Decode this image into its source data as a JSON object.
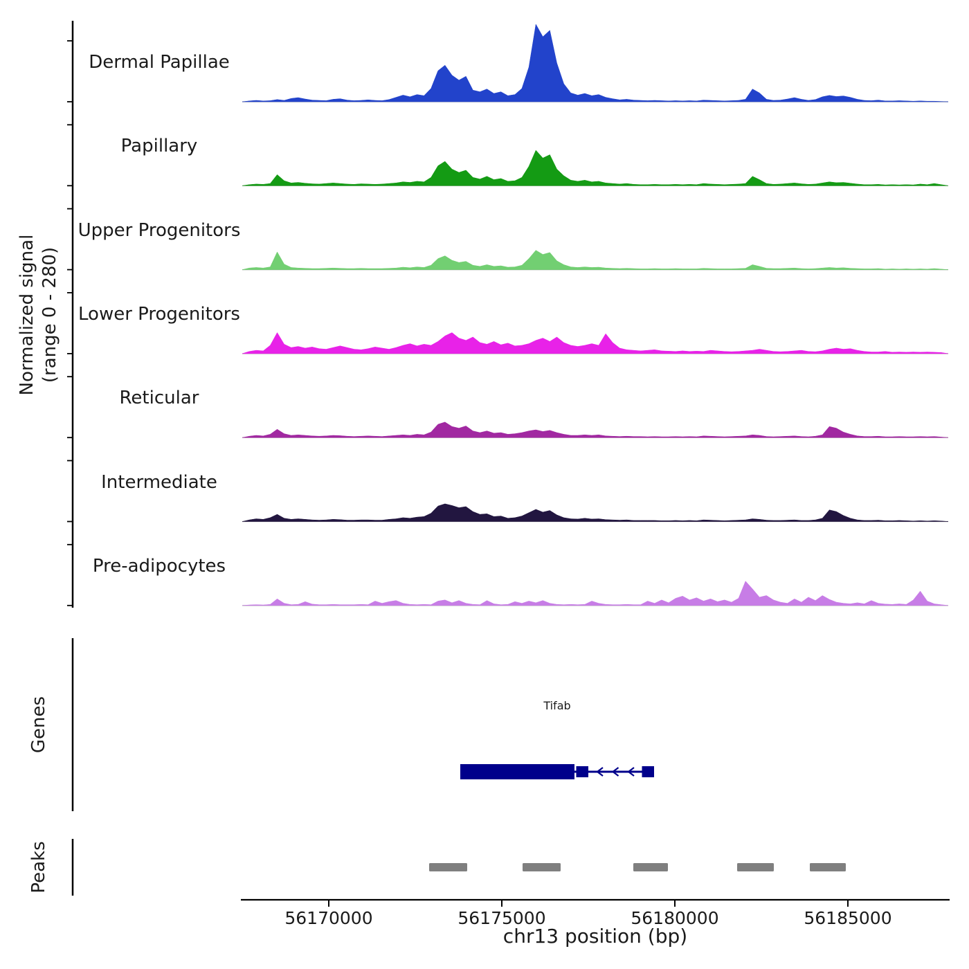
{
  "figure": {
    "ylabel_line1": "Normalized signal",
    "ylabel_line2": "(range 0 - 280)",
    "genes_label": "Genes",
    "peaks_label": "Peaks"
  },
  "chart_data": {
    "type": "area",
    "title": "",
    "xlabel": "chr13 position (bp)",
    "ylabel": "Normalized signal (range 0 - 280)",
    "x_range_bp": [
      56167500,
      56187900
    ],
    "y_range": [
      0,
      280
    ],
    "ticks_bp": [
      56170000,
      56175000,
      56180000,
      56185000
    ],
    "tick_labels": [
      "56170000",
      "56175000",
      "56180000",
      "56185000"
    ],
    "baseline_color": "#999999",
    "axis_color": "#000000",
    "tracks": [
      {
        "label": "Dermal Papillae",
        "color": "#2243cb",
        "values": [
          0,
          3,
          5,
          3,
          4,
          8,
          5,
          12,
          15,
          10,
          6,
          5,
          4,
          9,
          11,
          6,
          4,
          5,
          7,
          5,
          4,
          8,
          16,
          24,
          18,
          26,
          22,
          48,
          112,
          132,
          96,
          78,
          92,
          42,
          36,
          46,
          30,
          36,
          22,
          26,
          48,
          125,
          280,
          235,
          258,
          140,
          65,
          32,
          24,
          30,
          22,
          26,
          16,
          11,
          7,
          9,
          6,
          5,
          4,
          5,
          4,
          3,
          4,
          3,
          4,
          3,
          6,
          5,
          4,
          3,
          4,
          5,
          9,
          46,
          32,
          9,
          5,
          6,
          10,
          15,
          9,
          5,
          8,
          18,
          23,
          19,
          21,
          16,
          9,
          5,
          4,
          6,
          3,
          3,
          4,
          3,
          2,
          3,
          2,
          2,
          1,
          0
        ]
      },
      {
        "label": "Papillary",
        "color": "#149b14",
        "values": [
          0,
          4,
          6,
          5,
          8,
          40,
          18,
          10,
          12,
          9,
          7,
          6,
          8,
          10,
          8,
          6,
          5,
          7,
          6,
          5,
          6,
          8,
          10,
          14,
          12,
          16,
          14,
          30,
          72,
          88,
          60,
          48,
          56,
          30,
          24,
          34,
          22,
          26,
          16,
          18,
          30,
          70,
          128,
          100,
          112,
          60,
          36,
          20,
          16,
          20,
          14,
          16,
          10,
          8,
          6,
          8,
          5,
          4,
          4,
          5,
          4,
          4,
          5,
          4,
          5,
          4,
          8,
          6,
          5,
          4,
          5,
          6,
          8,
          34,
          22,
          8,
          5,
          6,
          8,
          10,
          7,
          5,
          6,
          10,
          14,
          11,
          12,
          9,
          6,
          4,
          4,
          5,
          3,
          4,
          3,
          4,
          3,
          6,
          4,
          8,
          4,
          0
        ]
      },
      {
        "label": "Upper Progenitors",
        "color": "#72cf72",
        "values": [
          0,
          6,
          8,
          6,
          10,
          64,
          20,
          8,
          6,
          5,
          4,
          4,
          5,
          6,
          5,
          4,
          4,
          5,
          4,
          4,
          4,
          5,
          6,
          9,
          7,
          10,
          8,
          16,
          40,
          50,
          34,
          26,
          30,
          16,
          12,
          18,
          12,
          14,
          9,
          10,
          16,
          40,
          70,
          55,
          62,
          32,
          18,
          10,
          8,
          10,
          8,
          9,
          6,
          5,
          4,
          5,
          4,
          3,
          3,
          4,
          3,
          3,
          4,
          3,
          3,
          3,
          5,
          4,
          3,
          3,
          3,
          4,
          5,
          18,
          12,
          5,
          4,
          4,
          5,
          6,
          4,
          3,
          4,
          6,
          8,
          6,
          7,
          5,
          4,
          3,
          3,
          4,
          2,
          3,
          2,
          3,
          2,
          3,
          2,
          4,
          2,
          0
        ]
      },
      {
        "label": "Lower Progenitors",
        "color": "#e822e8",
        "values": [
          0,
          8,
          12,
          10,
          30,
          76,
          34,
          22,
          26,
          20,
          24,
          18,
          16,
          22,
          28,
          22,
          16,
          14,
          18,
          24,
          20,
          16,
          22,
          30,
          36,
          28,
          34,
          30,
          44,
          64,
          76,
          56,
          48,
          60,
          40,
          34,
          44,
          32,
          38,
          28,
          30,
          36,
          48,
          56,
          44,
          60,
          40,
          30,
          26,
          30,
          36,
          30,
          72,
          40,
          20,
          14,
          12,
          10,
          12,
          14,
          10,
          9,
          8,
          10,
          8,
          9,
          8,
          12,
          10,
          8,
          7,
          8,
          10,
          12,
          16,
          12,
          8,
          7,
          8,
          10,
          12,
          8,
          7,
          10,
          16,
          20,
          16,
          18,
          12,
          8,
          6,
          6,
          8,
          5,
          6,
          5,
          6,
          5,
          6,
          5,
          4,
          0
        ]
      },
      {
        "label": "Reticular",
        "color": "#a128a1",
        "values": [
          0,
          5,
          8,
          6,
          12,
          30,
          14,
          8,
          10,
          8,
          6,
          5,
          6,
          8,
          7,
          5,
          4,
          5,
          6,
          5,
          4,
          6,
          8,
          10,
          8,
          12,
          10,
          20,
          48,
          56,
          40,
          34,
          42,
          24,
          18,
          24,
          16,
          18,
          12,
          14,
          18,
          24,
          28,
          22,
          26,
          18,
          12,
          8,
          8,
          10,
          8,
          10,
          6,
          5,
          4,
          5,
          4,
          4,
          3,
          4,
          3,
          3,
          4,
          3,
          4,
          3,
          6,
          5,
          4,
          3,
          4,
          5,
          6,
          10,
          8,
          4,
          3,
          4,
          5,
          6,
          4,
          3,
          5,
          10,
          40,
          34,
          20,
          12,
          6,
          4,
          4,
          5,
          3,
          3,
          4,
          3,
          3,
          4,
          3,
          4,
          2,
          0
        ]
      },
      {
        "label": "Intermediate",
        "color": "#221640",
        "values": [
          0,
          6,
          10,
          8,
          14,
          26,
          12,
          8,
          10,
          8,
          6,
          5,
          6,
          8,
          7,
          5,
          5,
          6,
          6,
          5,
          5,
          8,
          10,
          14,
          12,
          16,
          18,
          30,
          56,
          64,
          58,
          50,
          54,
          36,
          26,
          28,
          18,
          20,
          12,
          14,
          20,
          32,
          44,
          34,
          40,
          24,
          14,
          10,
          9,
          12,
          9,
          10,
          7,
          6,
          5,
          6,
          4,
          4,
          4,
          4,
          3,
          3,
          4,
          3,
          4,
          3,
          6,
          5,
          4,
          3,
          4,
          5,
          6,
          10,
          8,
          5,
          4,
          4,
          5,
          6,
          4,
          4,
          6,
          12,
          42,
          36,
          22,
          12,
          6,
          4,
          4,
          5,
          3,
          3,
          4,
          3,
          2,
          3,
          2,
          3,
          2,
          0
        ]
      },
      {
        "label": "Pre-adipocytes",
        "color": "#c77de6",
        "values": [
          0,
          2,
          3,
          2,
          4,
          24,
          8,
          3,
          4,
          14,
          5,
          3,
          3,
          4,
          3,
          3,
          3,
          4,
          3,
          16,
          8,
          14,
          18,
          8,
          4,
          3,
          4,
          3,
          16,
          20,
          10,
          18,
          8,
          4,
          3,
          18,
          6,
          3,
          4,
          14,
          8,
          16,
          10,
          18,
          8,
          4,
          3,
          4,
          3,
          4,
          16,
          8,
          4,
          3,
          3,
          4,
          3,
          3,
          16,
          8,
          20,
          10,
          26,
          34,
          20,
          28,
          16,
          24,
          14,
          20,
          12,
          26,
          88,
          60,
          30,
          36,
          20,
          12,
          8,
          24,
          12,
          30,
          18,
          36,
          22,
          12,
          8,
          6,
          10,
          6,
          18,
          8,
          5,
          4,
          6,
          4,
          20,
          52,
          16,
          6,
          3,
          0
        ]
      }
    ],
    "gene": {
      "name": "Tifab",
      "strand": "-",
      "color": "#00008b",
      "thick_start_bp": 56173800,
      "thick_end_bp": 56177100,
      "thin_end_bp": 56179400,
      "exons_bp": [
        [
          56177150,
          56177500
        ],
        [
          56179050,
          56179400
        ]
      ],
      "arrow_bp": [
        56177800,
        56178250,
        56178700
      ]
    },
    "peaks": {
      "color": "#7f7f7f",
      "intervals_bp": [
        [
          56172900,
          56174000
        ],
        [
          56175600,
          56176700
        ],
        [
          56178800,
          56179800
        ],
        [
          56181800,
          56182860
        ],
        [
          56183900,
          56184940
        ]
      ]
    }
  }
}
